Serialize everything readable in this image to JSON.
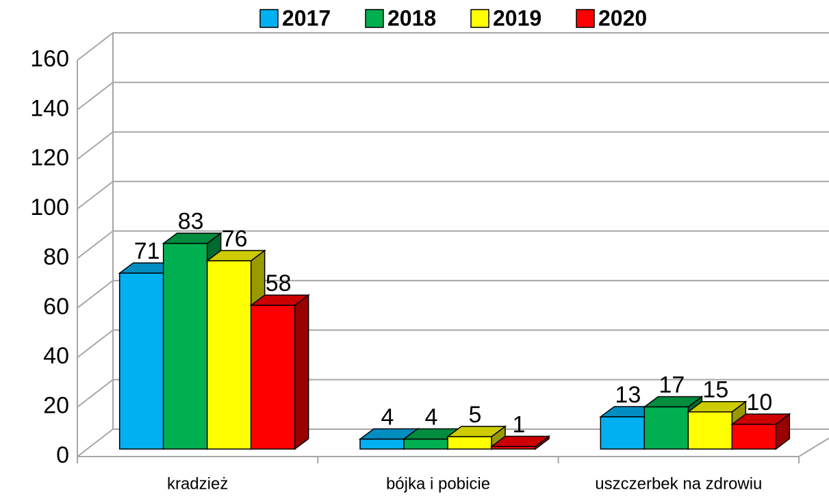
{
  "chart_data": {
    "type": "bar3d",
    "categories": [
      "kradzież",
      "bójka i pobicie",
      "uszczerbek na zdrowiu"
    ],
    "series": [
      {
        "name": "2017",
        "color": "#00b0f0",
        "values": [
          71,
          4,
          13
        ]
      },
      {
        "name": "2018",
        "color": "#00b050",
        "values": [
          83,
          4,
          17
        ]
      },
      {
        "name": "2019",
        "color": "#ffff00",
        "values": [
          76,
          5,
          15
        ]
      },
      {
        "name": "2020",
        "color": "#ff0000",
        "values": [
          58,
          1,
          10
        ]
      }
    ],
    "ylim": [
      0,
      160
    ],
    "yticks": [
      0,
      20,
      40,
      60,
      80,
      100,
      120,
      140,
      160
    ],
    "grid": true,
    "legend": "top"
  }
}
